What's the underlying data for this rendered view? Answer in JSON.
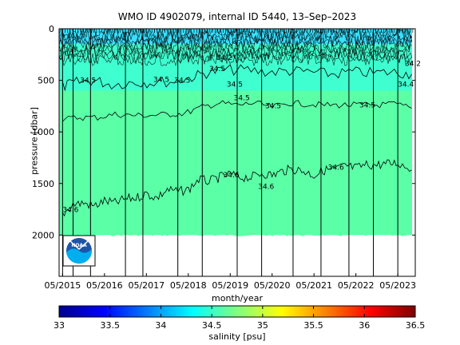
{
  "title": "WMO ID 4902079, internal ID 5440, 13–Sep–2023",
  "chart_data": {
    "type": "heatmap",
    "xlabel": "month/year",
    "ylabel": "pressure [dbar]",
    "xlim": [
      "2015-04",
      "2023-10"
    ],
    "ylim": [
      2400,
      0
    ],
    "x_ticks": [
      "05/2015",
      "05/2016",
      "05/2017",
      "05/2018",
      "05/2019",
      "05/2020",
      "05/2021",
      "05/2022",
      "05/2023"
    ],
    "y_ticks": [
      0,
      500,
      1000,
      1500,
      2000
    ],
    "colorbar": {
      "label": "salinity [psu]",
      "min": 33,
      "max": 36.5,
      "ticks": [
        "33",
        "33.5",
        "34",
        "34.5",
        "35",
        "35.5",
        "36",
        "36.5"
      ]
    },
    "layers": [
      {
        "range": [
          0,
          150
        ],
        "salinity": 34.2,
        "color": "#38e0ff"
      },
      {
        "range": [
          150,
          600
        ],
        "salinity": 34.45,
        "color": "#3fffd0"
      },
      {
        "range": [
          600,
          2000
        ],
        "salinity": 34.6,
        "color": "#5affa6"
      }
    ],
    "data_bottom_dbar": 2000,
    "contour_labels": [
      {
        "text": "34.5",
        "x": "2015-10",
        "y": 490
      },
      {
        "text": "34.5",
        "x": "2017-07",
        "y": 485
      },
      {
        "text": "34.5",
        "x": "2018-01",
        "y": 490
      },
      {
        "text": "34.5",
        "x": "2018-11",
        "y": 380
      },
      {
        "text": "34.5",
        "x": "2019-04",
        "y": 530
      },
      {
        "text": "34.5",
        "x": "2019-06",
        "y": 660
      },
      {
        "text": "34.5",
        "x": "2020-03",
        "y": 740
      },
      {
        "text": "34.5",
        "x": "2022-06",
        "y": 730
      },
      {
        "text": "34.4",
        "x": "2023-05",
        "y": 530
      },
      {
        "text": "34.6",
        "x": "2015-05",
        "y": 1745
      },
      {
        "text": "34.6",
        "x": "2019-03",
        "y": 1410
      },
      {
        "text": "34.6",
        "x": "2020-01",
        "y": 1520
      },
      {
        "text": "34.6",
        "x": "2021-09",
        "y": 1335
      },
      {
        "text": "34.2",
        "x": "2019-01",
        "y": 270
      },
      {
        "text": "34.2",
        "x": "2023-07",
        "y": 330
      }
    ],
    "isoline_34_5": [
      [
        "2015-05",
        560
      ],
      [
        "2015-09",
        520
      ],
      [
        "2016-02",
        500
      ],
      [
        "2016-07",
        540
      ],
      [
        "2017-01",
        520
      ],
      [
        "2017-06",
        520
      ],
      [
        "2018-01",
        510
      ],
      [
        "2018-06",
        470
      ],
      [
        "2018-11",
        420
      ],
      [
        "2019-04",
        400
      ],
      [
        "2019-10",
        400
      ],
      [
        "2020-04",
        420
      ],
      [
        "2020-10",
        410
      ],
      [
        "2021-04",
        420
      ],
      [
        "2021-10",
        440
      ],
      [
        "2022-04",
        420
      ],
      [
        "2022-10",
        430
      ],
      [
        "2023-04",
        420
      ],
      [
        "2023-09",
        440
      ]
    ],
    "isoline_34_55": [
      [
        "2015-05",
        880
      ],
      [
        "2015-10",
        860
      ],
      [
        "2016-03",
        860
      ],
      [
        "2016-08",
        830
      ],
      [
        "2017-01",
        840
      ],
      [
        "2017-06",
        840
      ],
      [
        "2017-11",
        830
      ],
      [
        "2018-04",
        820
      ],
      [
        "2018-09",
        760
      ],
      [
        "2019-02",
        720
      ],
      [
        "2019-07",
        740
      ],
      [
        "2019-12",
        720
      ],
      [
        "2020-05",
        760
      ],
      [
        "2020-10",
        720
      ],
      [
        "2021-03",
        730
      ],
      [
        "2021-08",
        740
      ],
      [
        "2022-01",
        740
      ],
      [
        "2022-06",
        740
      ],
      [
        "2022-11",
        740
      ],
      [
        "2023-04",
        730
      ],
      [
        "2023-09",
        770
      ]
    ],
    "isoline_34_6": [
      [
        "2015-05",
        1800
      ],
      [
        "2015-08",
        1700
      ],
      [
        "2015-11",
        1690
      ],
      [
        "2016-02",
        1720
      ],
      [
        "2016-05",
        1670
      ],
      [
        "2016-08",
        1690
      ],
      [
        "2016-11",
        1650
      ],
      [
        "2017-02",
        1640
      ],
      [
        "2017-05",
        1600
      ],
      [
        "2017-08",
        1640
      ],
      [
        "2017-11",
        1560
      ],
      [
        "2018-02",
        1580
      ],
      [
        "2018-05",
        1560
      ],
      [
        "2018-08",
        1460
      ],
      [
        "2018-11",
        1480
      ],
      [
        "2019-02",
        1440
      ],
      [
        "2019-05",
        1410
      ],
      [
        "2019-08",
        1440
      ],
      [
        "2019-11",
        1440
      ],
      [
        "2020-02",
        1400
      ],
      [
        "2020-05",
        1420
      ],
      [
        "2020-08",
        1380
      ],
      [
        "2020-11",
        1360
      ],
      [
        "2021-02",
        1380
      ],
      [
        "2021-05",
        1420
      ],
      [
        "2021-08",
        1370
      ],
      [
        "2021-11",
        1360
      ],
      [
        "2022-02",
        1330
      ],
      [
        "2022-05",
        1350
      ],
      [
        "2022-08",
        1320
      ],
      [
        "2022-11",
        1320
      ],
      [
        "2023-02",
        1310
      ],
      [
        "2023-05",
        1300
      ],
      [
        "2023-09",
        1370
      ]
    ],
    "profile_dates": [
      "2015-05",
      "2015-08",
      "2016-01",
      "2016-11",
      "2017-04",
      "2018-02",
      "2018-09",
      "2019-07",
      "2020-02",
      "2020-11",
      "2021-07",
      "2022-03",
      "2022-10",
      "2023-05"
    ]
  },
  "logo": {
    "text": "NOAA",
    "name": "noaa-logo"
  }
}
